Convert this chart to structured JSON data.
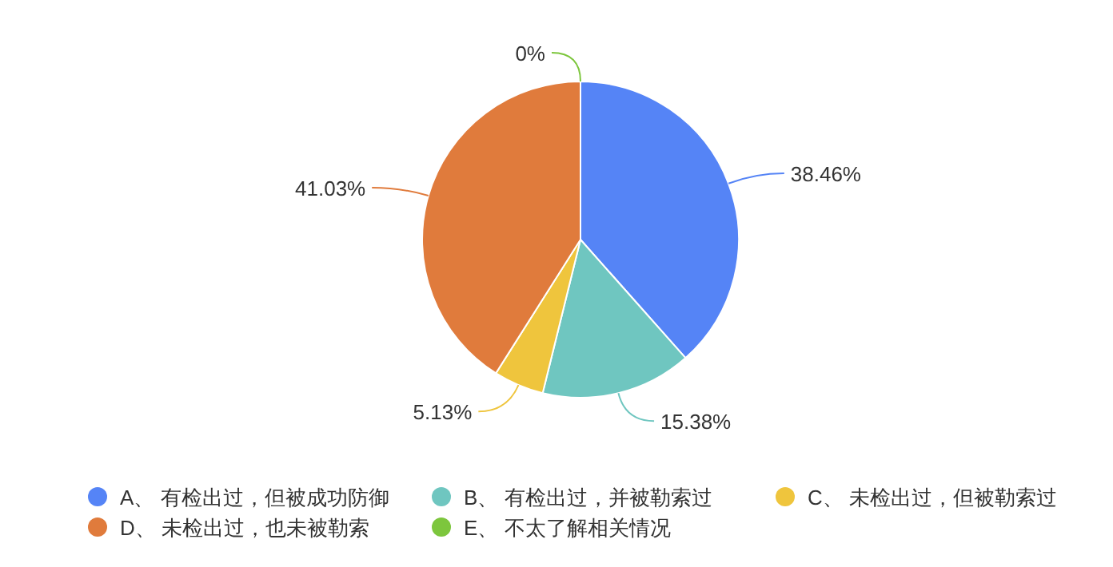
{
  "chart_data": {
    "type": "pie",
    "categories": [
      "A、 有检出过，但被成功防御",
      "B、 有检出过，并被勒索过",
      "C、 未检出过，但被勒索过",
      "D、 未检出过，也未被勒索",
      "E、 不太了解相关情况"
    ],
    "values": [
      38.46,
      15.38,
      5.13,
      41.03,
      0
    ],
    "colors": [
      "#5584f6",
      "#6fc6c0",
      "#efc53d",
      "#e07b3c",
      "#7dc63d"
    ],
    "value_labels": [
      "38.46%",
      "15.38%",
      "5.13%",
      "41.03%",
      "0%"
    ],
    "legend": "bottom"
  }
}
